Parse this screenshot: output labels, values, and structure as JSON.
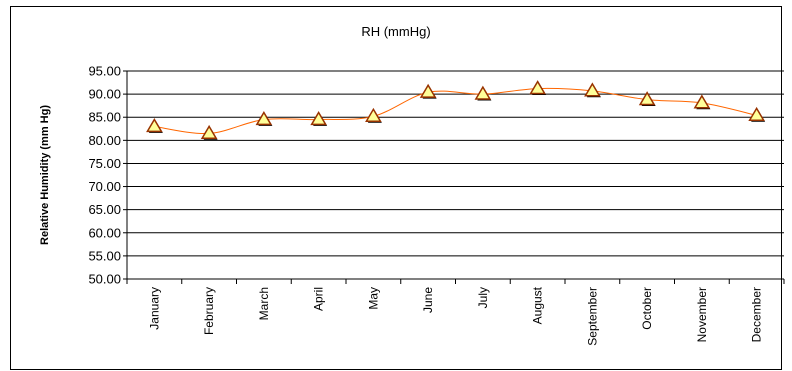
{
  "chart_data": {
    "type": "line",
    "title": "RH (mmHg)",
    "xlabel": "",
    "ylabel": "Relative Humidity (mm Hg)",
    "categories": [
      "January",
      "February",
      "March",
      "April",
      "May",
      "June",
      "July",
      "August",
      "September",
      "October",
      "November",
      "December"
    ],
    "series": [
      {
        "values": [
          83.0,
          81.5,
          84.5,
          84.5,
          85.2,
          90.4,
          90.0,
          91.2,
          90.7,
          88.8,
          88.1,
          85.4
        ],
        "color": "#ff6600",
        "marker": "triangle",
        "marker_fill": "#ffff99",
        "marker_stroke": "#993300"
      }
    ],
    "ylim": [
      50,
      95
    ],
    "yticks": [
      "50.00",
      "55.00",
      "60.00",
      "65.00",
      "70.00",
      "75.00",
      "80.00",
      "85.00",
      "90.00",
      "95.00"
    ],
    "grid": true,
    "smooth": true
  }
}
